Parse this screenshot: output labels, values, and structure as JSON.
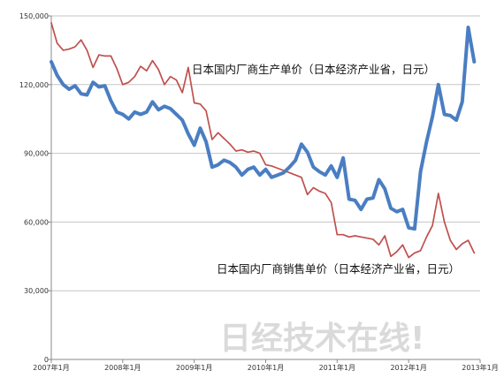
{
  "chart_data": {
    "type": "line",
    "title": "",
    "xlabel": "",
    "ylabel": "",
    "ylim": [
      0,
      150000
    ],
    "yticks": [
      0,
      30000,
      60000,
      90000,
      120000,
      150000
    ],
    "ytick_labels": [
      "0",
      "30,000",
      "60,000",
      "90,000",
      "120,000",
      "150,000"
    ],
    "xlim": [
      0,
      72
    ],
    "xticks": [
      0,
      12,
      24,
      36,
      48,
      60,
      72
    ],
    "xtick_labels": [
      "2007年1月",
      "2008年1月",
      "2009年1月",
      "2010年1月",
      "2011年1月",
      "2012年1月",
      "2013年1月"
    ],
    "grid": true,
    "legend": "none",
    "series": [
      {
        "name": "日本国内厂商生产单价（日本经济产业省，日元）",
        "color": "#4a7ec2",
        "values": [
          130000,
          124000,
          120000,
          118000,
          119500,
          116000,
          115500,
          121000,
          119000,
          119500,
          113000,
          108000,
          107000,
          105000,
          108000,
          107000,
          108000,
          112500,
          109000,
          110500,
          109500,
          107000,
          104500,
          98500,
          93500,
          101000,
          95000,
          84000,
          85000,
          87000,
          86000,
          84000,
          80500,
          83000,
          84000,
          80500,
          83000,
          79500,
          80500,
          81500,
          84000,
          87000,
          94000,
          90500,
          84000,
          82000,
          80500,
          84500,
          79500,
          88000,
          70000,
          69500,
          65500,
          70000,
          70500,
          78500,
          74500,
          66000,
          64500,
          65500,
          57500,
          57000,
          82000,
          95000,
          106000,
          120000,
          107000,
          106500,
          104500,
          112500,
          145000,
          130000
        ],
        "annotation": "日本国内厂商生产单价（日本经济产业省，日元）"
      },
      {
        "name": "日本国内厂商销售单价（日本经济产业省，日元）",
        "color": "#c0504d",
        "values": [
          147000,
          138000,
          135000,
          135500,
          136500,
          139500,
          135000,
          127500,
          133000,
          132500,
          132500,
          127000,
          120000,
          121000,
          123500,
          128000,
          126000,
          130500,
          126500,
          120000,
          123500,
          122000,
          116500,
          127500,
          112000,
          111500,
          108500,
          96000,
          99000,
          96500,
          94000,
          91000,
          91500,
          90500,
          91000,
          90000,
          85000,
          84500,
          83500,
          82500,
          81500,
          80500,
          79500,
          72000,
          75000,
          73500,
          72500,
          68500,
          54500,
          54500,
          53500,
          54000,
          53500,
          53000,
          52500,
          50000,
          54000,
          45000,
          47000,
          50000,
          44500,
          46500,
          47500,
          53500,
          58500,
          72500,
          60000,
          52000,
          48000,
          50500,
          52000,
          46500
        ],
        "annotation": "日本国内厂商销售单价（日本经济产业省，日元）"
      }
    ],
    "watermark": "日经技术在线!"
  }
}
